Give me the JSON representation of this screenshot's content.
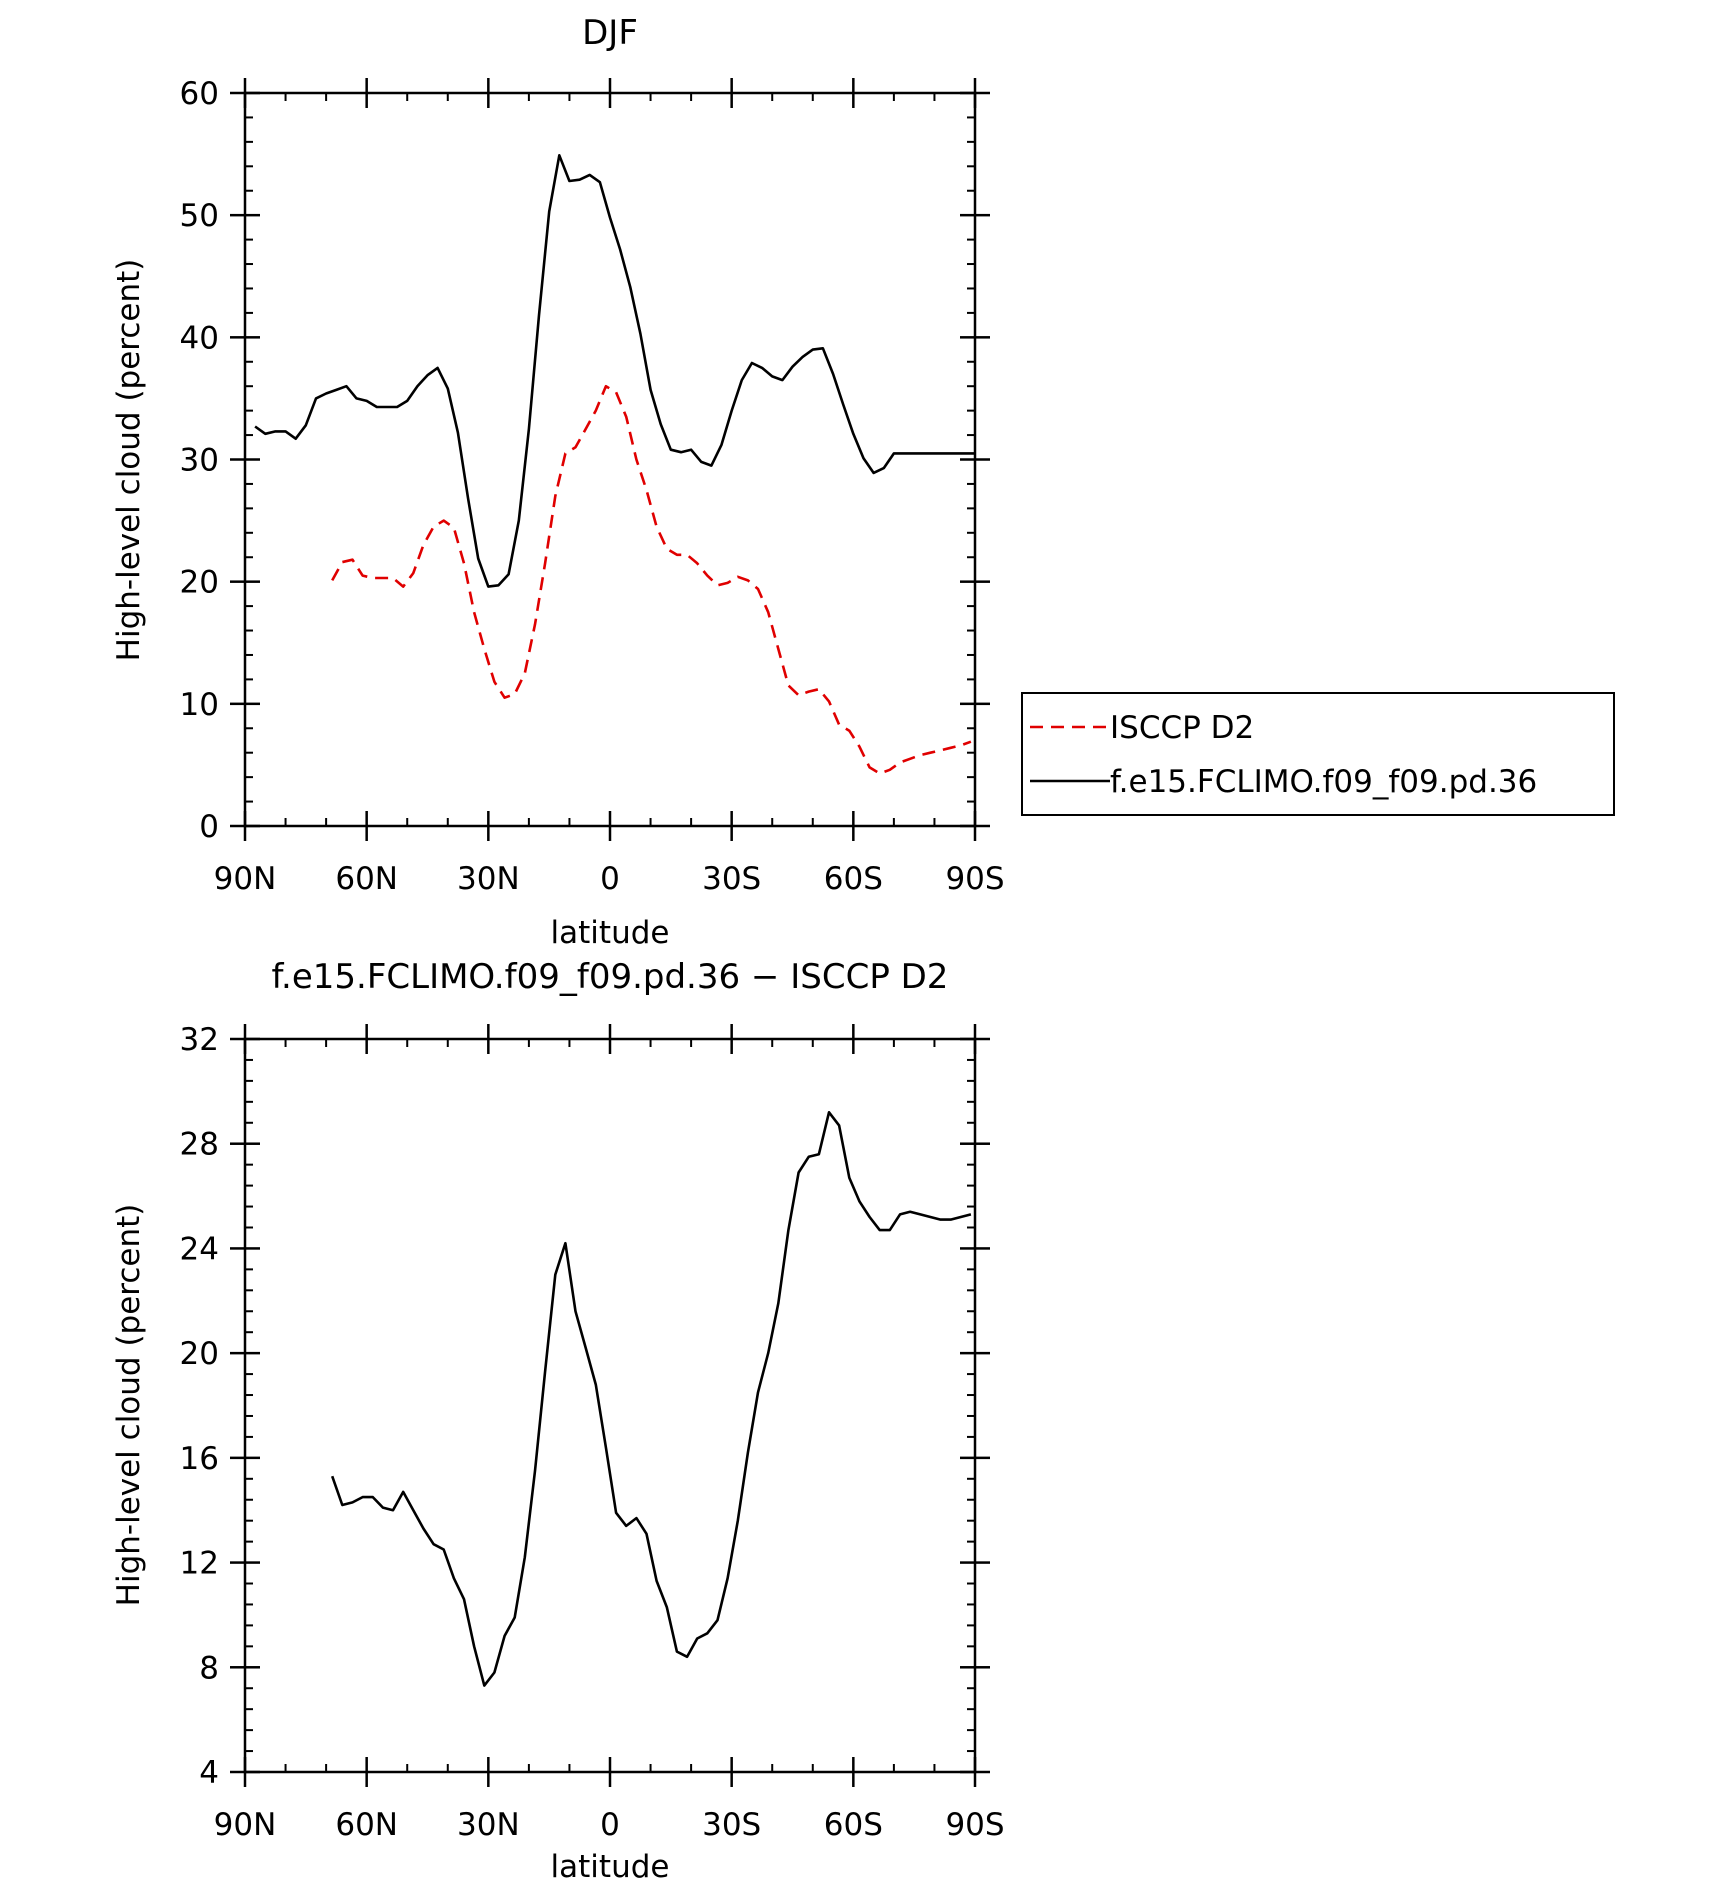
{
  "chart_data": [
    {
      "type": "line",
      "title": "DJF",
      "xlabel": "latitude",
      "ylabel": "High-level cloud (percent)",
      "xlim": [
        90,
        -90
      ],
      "ylim": [
        0,
        60
      ],
      "xticks": [
        {
          "value": 90,
          "label": "90N"
        },
        {
          "value": 60,
          "label": "60N"
        },
        {
          "value": 30,
          "label": "30N"
        },
        {
          "value": 0,
          "label": "0"
        },
        {
          "value": -30,
          "label": "30S"
        },
        {
          "value": -60,
          "label": "60S"
        },
        {
          "value": -90,
          "label": "90S"
        }
      ],
      "yticks": [
        0,
        10,
        20,
        30,
        40,
        50,
        60
      ],
      "legend": {
        "position": "right"
      },
      "series": [
        {
          "name": "ISCCP D2",
          "color": "#e00000",
          "dash": true,
          "x": [
            68.5,
            66,
            63.5,
            61,
            58.5,
            56,
            53.5,
            51,
            48.5,
            46,
            43.5,
            41,
            38.5,
            36,
            33.5,
            31,
            28.5,
            26,
            23.5,
            21,
            18.5,
            16,
            13.5,
            11,
            8.5,
            6,
            3.5,
            1,
            -1.5,
            -4,
            -6.5,
            -9,
            -11.5,
            -14,
            -16.5,
            -19,
            -21.5,
            -24,
            -26.5,
            -29,
            -31.5,
            -34,
            -36.5,
            -39,
            -41.5,
            -44,
            -46.5,
            -49,
            -51.5,
            -54,
            -56.5,
            -59,
            -61.5,
            -64,
            -66.5,
            -69,
            -71.5,
            -74,
            -76.5,
            -79,
            -81.5,
            -84,
            -86.5,
            -89
          ],
          "values": [
            20.1,
            21.6,
            21.8,
            20.5,
            20.3,
            20.3,
            20.3,
            19.6,
            20.7,
            23.0,
            24.5,
            25.0,
            24.4,
            21.5,
            17.5,
            14.5,
            11.8,
            10.5,
            10.8,
            12.5,
            16.5,
            21.5,
            27.0,
            30.5,
            31.0,
            32.5,
            34.0,
            36.0,
            35.5,
            33.5,
            30.0,
            27.5,
            24.5,
            22.7,
            22.2,
            22.2,
            21.5,
            20.5,
            19.7,
            19.9,
            20.4,
            20.1,
            19.4,
            17.5,
            14.5,
            11.5,
            10.7,
            11.0,
            11.2,
            10.2,
            8.3,
            7.8,
            6.5,
            4.8,
            4.3,
            4.6,
            5.2,
            5.5,
            5.8,
            6.0,
            6.2,
            6.4,
            6.6,
            6.9
          ]
        },
        {
          "name": "f.e15.FCLIMO.f09_f09.pd.36",
          "color": "#000000",
          "dash": false,
          "x": [
            87.5,
            85,
            82.5,
            80,
            77.5,
            75,
            72.5,
            70,
            67.5,
            65,
            62.5,
            60,
            57.5,
            55,
            52.5,
            50,
            47.5,
            45,
            42.5,
            40,
            37.5,
            35,
            32.5,
            30,
            27.5,
            25,
            22.5,
            20,
            17.5,
            15,
            12.5,
            10,
            7.5,
            5,
            2.5,
            0,
            -2.5,
            -5,
            -7.5,
            -10,
            -12.5,
            -15,
            -17.5,
            -20,
            -22.5,
            -25,
            -27.5,
            -30,
            -32.5,
            -35,
            -37.5,
            -40,
            -42.5,
            -45,
            -47.5,
            -50,
            -52.5,
            -55,
            -57.5,
            -60,
            -62.5,
            -65,
            -67.5,
            -70,
            -72.5,
            -75,
            -77.5,
            -80,
            -82.5,
            -85,
            -87.5,
            -90
          ],
          "values": [
            32.7,
            32.1,
            32.3,
            32.3,
            31.7,
            32.8,
            35.0,
            35.4,
            35.7,
            36.0,
            35.0,
            34.8,
            34.3,
            34.3,
            34.3,
            34.8,
            36.0,
            36.9,
            37.5,
            35.8,
            32.2,
            26.8,
            21.9,
            19.6,
            19.7,
            20.6,
            25.0,
            32.5,
            41.8,
            50.3,
            54.9,
            52.8,
            52.9,
            53.3,
            52.7,
            49.8,
            47.2,
            44.1,
            40.3,
            35.7,
            32.9,
            30.8,
            30.6,
            30.8,
            29.8,
            29.5,
            31.2,
            34.0,
            36.5,
            37.9,
            37.5,
            36.8,
            36.5,
            37.6,
            38.4,
            39.0,
            39.1,
            37.0,
            34.5,
            32.1,
            30.1,
            28.9,
            29.3,
            30.5,
            30.5,
            30.5,
            30.5,
            30.5,
            30.5,
            30.5,
            30.5,
            30.5
          ]
        }
      ]
    },
    {
      "type": "line",
      "title": "f.e15.FCLIMO.f09_f09.pd.36 − ISCCP D2",
      "xlabel": "latitude",
      "ylabel": "High-level cloud (percent)",
      "xlim": [
        90,
        -90
      ],
      "ylim": [
        4,
        32
      ],
      "xticks": [
        {
          "value": 90,
          "label": "90N"
        },
        {
          "value": 60,
          "label": "60N"
        },
        {
          "value": 30,
          "label": "30N"
        },
        {
          "value": 0,
          "label": "0"
        },
        {
          "value": -30,
          "label": "30S"
        },
        {
          "value": -60,
          "label": "60S"
        },
        {
          "value": -90,
          "label": "90S"
        }
      ],
      "yticks": [
        4,
        8,
        12,
        16,
        20,
        24,
        28,
        32
      ],
      "series": [
        {
          "color": "#000000",
          "dash": false,
          "x": [
            68.5,
            66,
            63.5,
            61,
            58.5,
            56,
            53.5,
            51,
            48.5,
            46,
            43.5,
            41,
            38.5,
            36,
            33.5,
            31,
            28.5,
            26,
            23.5,
            21,
            18.5,
            16,
            13.5,
            11,
            8.5,
            6,
            3.5,
            1,
            -1.5,
            -4,
            -6.5,
            -9,
            -11.5,
            -14,
            -16.5,
            -19,
            -21.5,
            -24,
            -26.5,
            -29,
            -31.5,
            -34,
            -36.5,
            -39,
            -41.5,
            -44,
            -46.5,
            -49,
            -51.5,
            -54,
            -56.5,
            -59,
            -61.5,
            -64,
            -66.5,
            -69,
            -71.5,
            -74,
            -76.5,
            -79,
            -81.5,
            -84,
            -86.5,
            -89
          ],
          "values": [
            15.3,
            14.2,
            14.3,
            14.5,
            14.5,
            14.1,
            14.0,
            14.7,
            14.0,
            13.3,
            12.7,
            12.5,
            11.4,
            10.6,
            8.8,
            7.3,
            7.8,
            9.2,
            9.9,
            12.2,
            15.5,
            19.3,
            23.0,
            24.2,
            21.6,
            20.2,
            18.8,
            16.4,
            13.9,
            13.4,
            13.7,
            13.1,
            11.3,
            10.3,
            8.6,
            8.4,
            9.1,
            9.3,
            9.8,
            11.4,
            13.6,
            16.2,
            18.5,
            20.0,
            21.9,
            24.7,
            26.9,
            27.5,
            27.6,
            29.2,
            28.7,
            26.7,
            25.8,
            25.2,
            24.7,
            24.7,
            25.3,
            25.4,
            25.3,
            25.2,
            25.1,
            25.1,
            25.2,
            25.3
          ]
        }
      ]
    }
  ]
}
